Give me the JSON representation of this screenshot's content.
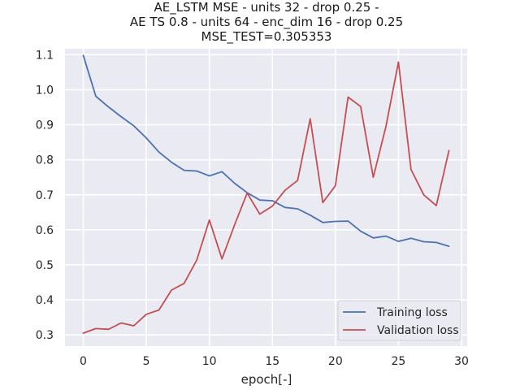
{
  "chart_data": {
    "type": "line",
    "title_lines": [
      "AE_LSTM MSE - units 32 - drop 0.25 -",
      "AE TS 0.8 - units 64 - enc_dim 16 - drop 0.25",
      "MSE_TEST=0.305353"
    ],
    "xlabel": "epoch[-]",
    "ylabel": "",
    "x": [
      0,
      1,
      2,
      3,
      4,
      5,
      6,
      7,
      8,
      9,
      10,
      11,
      12,
      13,
      14,
      15,
      16,
      17,
      18,
      19,
      20,
      21,
      22,
      23,
      24,
      25,
      26,
      27,
      28,
      29
    ],
    "xlim": [
      -1.45,
      30.45
    ],
    "ylim": [
      0.268,
      1.117
    ],
    "x_ticks": [
      0,
      5,
      10,
      15,
      20,
      25,
      30
    ],
    "y_ticks": [
      0.3,
      0.4,
      0.5,
      0.6,
      0.7,
      0.8,
      0.9,
      1.0,
      1.1
    ],
    "x_tick_labels": [
      "0",
      "5",
      "10",
      "15",
      "20",
      "25",
      "30"
    ],
    "y_tick_labels": [
      "0.3",
      "0.4",
      "0.5",
      "0.6",
      "0.7",
      "0.8",
      "0.9",
      "1.0",
      "1.1"
    ],
    "grid": true,
    "legend_position": "bottom-right",
    "background_color": "#eaeaf2",
    "grid_color": "#ffffff",
    "series": [
      {
        "name": "Training loss",
        "color": "#4c72b0",
        "values": [
          1.098,
          0.981,
          0.951,
          0.923,
          0.897,
          0.862,
          0.822,
          0.793,
          0.77,
          0.768,
          0.754,
          0.766,
          0.733,
          0.706,
          0.685,
          0.683,
          0.664,
          0.66,
          0.642,
          0.621,
          0.624,
          0.625,
          0.596,
          0.577,
          0.582,
          0.567,
          0.576,
          0.566,
          0.564,
          0.553
        ]
      },
      {
        "name": "Validation loss",
        "color": "#c44e52",
        "values": [
          0.305,
          0.318,
          0.316,
          0.334,
          0.326,
          0.359,
          0.371,
          0.428,
          0.447,
          0.514,
          0.628,
          0.517,
          0.614,
          0.705,
          0.645,
          0.668,
          0.713,
          0.741,
          0.917,
          0.678,
          0.726,
          0.979,
          0.952,
          0.75,
          0.894,
          1.079,
          0.772,
          0.7,
          0.669,
          0.826
        ]
      }
    ]
  }
}
